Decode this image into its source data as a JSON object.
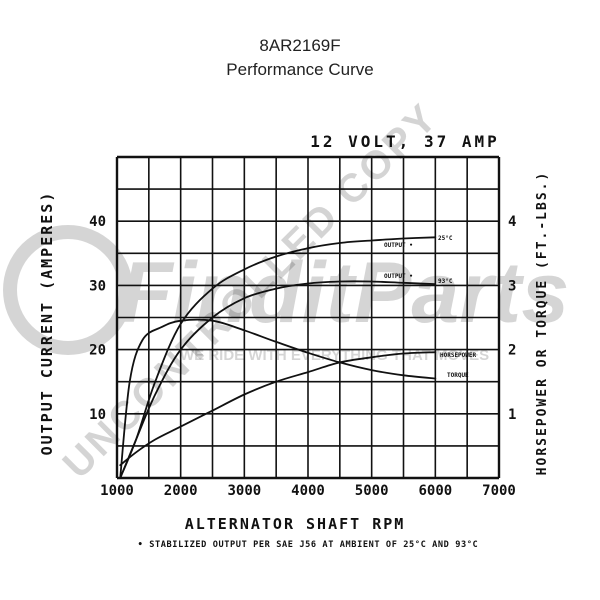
{
  "header": {
    "part_number": "8AR2169F",
    "subtitle": "Performance Curve"
  },
  "watermark": {
    "diagonal_text": "UNCONTROLLED COPY",
    "brand_text": "FinditParts",
    "tagline": "WE RIDE WITH EVERYTHING THAT MOVES"
  },
  "chart_data": {
    "type": "line",
    "title": "12 VOLT, 37 AMP",
    "xlabel": "ALTERNATOR SHAFT RPM",
    "ylabel_left": "OUTPUT CURRENT (AMPERES)",
    "ylabel_right": "HORSEPOWER OR TORQUE (FT.-LBS.)",
    "footnote": "• STABILIZED OUTPUT PER SAE J56 AT AMBIENT OF 25°C AND 93°C",
    "xlim": [
      1000,
      7000
    ],
    "ylim_left": [
      0,
      50
    ],
    "ylim_right": [
      0,
      5
    ],
    "x_ticks": [
      "1000",
      "2000",
      "3000",
      "4000",
      "5000",
      "6000",
      "7000"
    ],
    "y_left_ticks": [
      "10",
      "20",
      "30",
      "40"
    ],
    "y_right_ticks": [
      "1",
      "2",
      "3",
      "4"
    ],
    "grid": true,
    "series": [
      {
        "name": "OUTPUT - 25°C",
        "axis": "left",
        "x": [
          1050,
          1300,
          1600,
          2000,
          2500,
          3000,
          3500,
          4000,
          4500,
          5000,
          5500,
          6000
        ],
        "y": [
          0,
          6,
          15,
          24,
          29.5,
          32.5,
          34.5,
          35.8,
          36.6,
          37.0,
          37.3,
          37.5
        ]
      },
      {
        "name": "OUTPUT - 93°C",
        "axis": "left",
        "x": [
          1050,
          1300,
          1600,
          2000,
          2500,
          3000,
          3500,
          4000,
          4500,
          5000,
          5500,
          6000
        ],
        "y": [
          0,
          6,
          13,
          20,
          25,
          28,
          29.5,
          30.3,
          30.6,
          30.6,
          30.4,
          30.2
        ]
      },
      {
        "name": "HORSEPOWER",
        "axis": "right",
        "x": [
          1050,
          1300,
          1600,
          2000,
          2500,
          3000,
          3500,
          4000,
          4500,
          5000,
          5500,
          6000
        ],
        "y": [
          0.2,
          0.4,
          0.6,
          0.8,
          1.05,
          1.3,
          1.5,
          1.65,
          1.8,
          1.88,
          1.94,
          1.96
        ]
      },
      {
        "name": "TORQUE",
        "axis": "right",
        "x": [
          1050,
          1200,
          1400,
          1700,
          2000,
          2500,
          3000,
          3500,
          4000,
          4500,
          5000,
          5500,
          6000
        ],
        "y": [
          0,
          1.5,
          2.15,
          2.35,
          2.45,
          2.45,
          2.3,
          2.12,
          1.95,
          1.8,
          1.68,
          1.6,
          1.55
        ]
      }
    ],
    "annotations": {
      "out25": "OUTPUT •",
      "t25": "25°C",
      "out93": "OUTPUT •",
      "t93": "93°C",
      "hp": "HORSEPOWER",
      "tq": "TORQUE"
    }
  }
}
